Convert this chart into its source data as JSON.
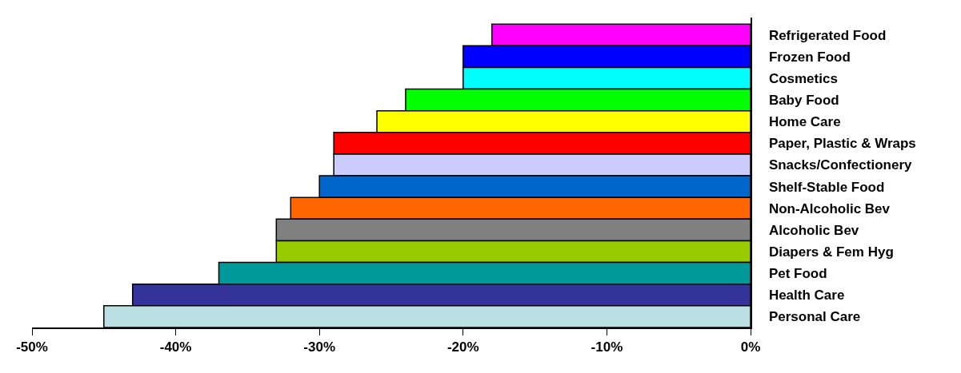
{
  "chart_data": {
    "type": "bar",
    "orientation": "horizontal",
    "categories": [
      "Refrigerated Food",
      "Frozen Food",
      "Cosmetics",
      "Baby Food",
      "Home Care",
      "Paper, Plastic & Wraps",
      "Snacks/Confectionery",
      "Shelf-Stable Food",
      "Non-Alcoholic Bev",
      "Alcoholic Bev",
      "Diapers & Fem Hyg",
      "Pet Food",
      "Health Care",
      "Personal Care"
    ],
    "values": [
      -18,
      -20,
      -20,
      -24,
      -26,
      -29,
      -29,
      -30,
      -32,
      -33,
      -33,
      -37,
      -43,
      -45
    ],
    "colors": [
      "#ff00ff",
      "#0000ff",
      "#00ffff",
      "#00ff00",
      "#ffff00",
      "#ff0000",
      "#ccccff",
      "#0066cc",
      "#ff6600",
      "#808080",
      "#99cc00",
      "#009999",
      "#333399",
      "#bbe0e3"
    ],
    "xlim": [
      -50,
      0
    ],
    "xticks": [
      {
        "value": -50,
        "label": "-50%"
      },
      {
        "value": -40,
        "label": "-40%"
      },
      {
        "value": -30,
        "label": "-30%"
      },
      {
        "value": -20,
        "label": "-20%"
      },
      {
        "value": -10,
        "label": "-10%"
      },
      {
        "value": 0,
        "label": "0%"
      }
    ],
    "grid": false
  }
}
